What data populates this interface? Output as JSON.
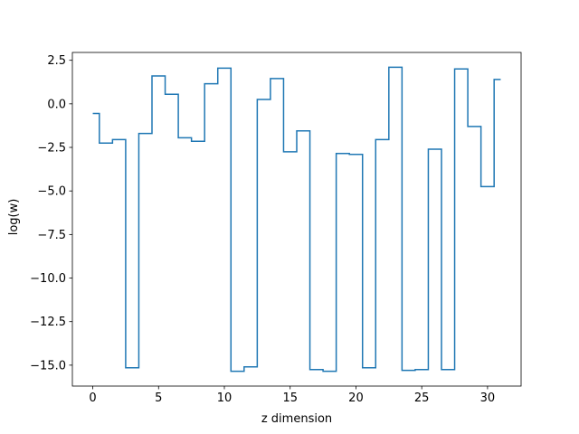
{
  "chart_data": {
    "type": "line",
    "drawstyle": "steps-mid",
    "title": "",
    "xlabel": "z dimension",
    "ylabel": "log(w)",
    "xlim": [
      -1.55,
      32.55
    ],
    "ylim": [
      -16.2,
      2.95
    ],
    "xticks": [
      0,
      5,
      10,
      15,
      20,
      25,
      30
    ],
    "xtick_labels": [
      "0",
      "5",
      "10",
      "15",
      "20",
      "25",
      "30"
    ],
    "yticks": [
      2.5,
      0.0,
      -2.5,
      -5.0,
      -7.5,
      -10.0,
      -12.5,
      -15.0
    ],
    "ytick_labels": [
      "2.5",
      "0.0",
      "−2.5",
      "−5.0",
      "−7.5",
      "−10.0",
      "−12.5",
      "−15.0"
    ],
    "grid": false,
    "legend": "none",
    "series": [
      {
        "color": "#1f77b4",
        "x": [
          0,
          1,
          2,
          3,
          4,
          5,
          6,
          7,
          8,
          9,
          10,
          11,
          12,
          13,
          14,
          15,
          16,
          17,
          18,
          19,
          20,
          21,
          22,
          23,
          24,
          25,
          26,
          27,
          28,
          29,
          30,
          31
        ],
        "y": [
          -0.55,
          -2.25,
          -2.05,
          -15.15,
          -1.7,
          1.6,
          0.55,
          -1.95,
          -2.15,
          1.15,
          2.05,
          -15.35,
          -15.1,
          0.25,
          1.45,
          -2.75,
          -1.55,
          -15.25,
          -15.35,
          -2.85,
          -2.9,
          -15.15,
          -2.05,
          2.1,
          -15.3,
          -15.25,
          -2.6,
          -15.25,
          2.0,
          -1.3,
          -4.75,
          1.4
        ]
      }
    ]
  }
}
